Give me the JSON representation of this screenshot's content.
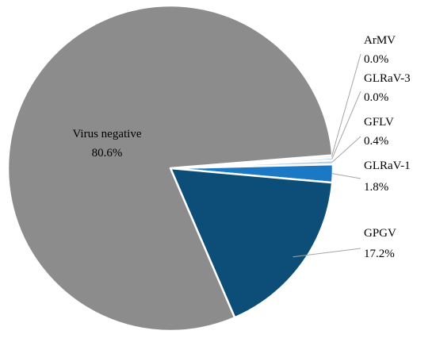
{
  "chart_data": {
    "type": "pie",
    "slices": [
      {
        "label": "Virus negative",
        "value": 80.6,
        "display": "80.6%",
        "color": "#8c8c8c"
      },
      {
        "label": "GPGV",
        "value": 17.2,
        "display": "17.2%",
        "color": "#0d4e78"
      },
      {
        "label": "GLRaV-1",
        "value": 1.8,
        "display": "1.8%",
        "color": "#1a78c4"
      },
      {
        "label": "GFLV",
        "value": 0.4,
        "display": "0.4%",
        "color": "#b8d4ea"
      },
      {
        "label": "GLRaV-3",
        "value": 0.0,
        "display": "0.0%",
        "color": "#9dc3e6"
      },
      {
        "label": "ArMV",
        "value": 0.0,
        "display": "0.0%",
        "color": "#dce9f5"
      }
    ],
    "legend": "none",
    "labels_placement": "callouts"
  }
}
